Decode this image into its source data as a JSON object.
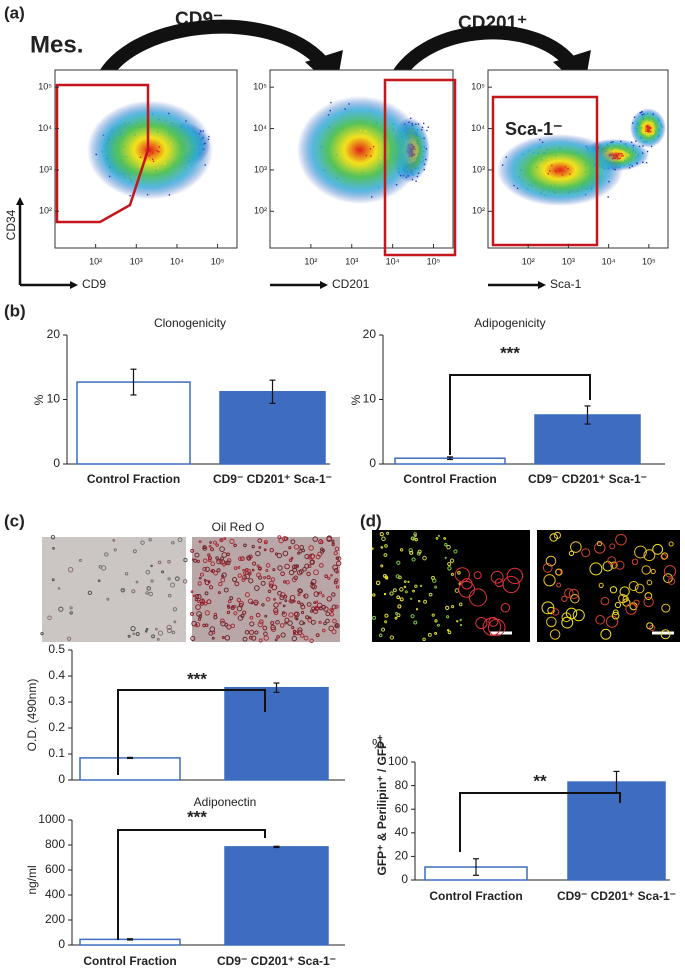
{
  "panels": [
    "(a)",
    "(b)",
    "(c)",
    "(d)"
  ],
  "flow": {
    "source": "Mes.",
    "steps": [
      "CD9⁻",
      "CD201⁺"
    ]
  },
  "chart_data": [
    {
      "type": "density",
      "x_label": "CD9",
      "y_label": "CD34",
      "log_scale": true,
      "xlim": [
        10,
        300000
      ],
      "ylim": [
        13,
        260000
      ],
      "xticks": [
        {
          "value": 100,
          "label": "10²"
        },
        {
          "value": 1000,
          "label": "10³"
        },
        {
          "value": 10000,
          "label": "10⁴"
        },
        {
          "value": 100000,
          "label": "10⁵"
        }
      ],
      "yticks": [
        {
          "value": 100,
          "label": "10²"
        },
        {
          "value": 1000,
          "label": "10³"
        },
        {
          "value": 10000,
          "label": "10⁴"
        },
        {
          "value": 100000,
          "label": "10⁵"
        }
      ]
    },
    {
      "type": "density",
      "x_label": "CD201",
      "log_scale": true,
      "xlim": [
        10,
        300000
      ],
      "ylim": [
        13,
        260000
      ],
      "xticks": [
        {
          "value": 100,
          "label": "10²"
        },
        {
          "value": 1000,
          "label": "10³"
        },
        {
          "value": 10000,
          "label": "10⁴"
        },
        {
          "value": 100000,
          "label": "10⁵"
        }
      ],
      "yticks": [
        {
          "value": 100,
          "label": "10²"
        },
        {
          "value": 1000,
          "label": "10³"
        },
        {
          "value": 10000,
          "label": "10⁴"
        },
        {
          "value": 100000,
          "label": "10⁵"
        }
      ]
    },
    {
      "type": "density",
      "x_label": "Sca-1",
      "gate_label": "Sca-1⁻",
      "log_scale": true,
      "xlim": [
        10,
        300000
      ],
      "ylim": [
        13,
        260000
      ],
      "xticks": [
        {
          "value": 100,
          "label": "10²"
        },
        {
          "value": 1000,
          "label": "10³"
        },
        {
          "value": 10000,
          "label": "10⁴"
        },
        {
          "value": 100000,
          "label": "10⁵"
        }
      ],
      "yticks": [
        {
          "value": 100,
          "label": "10²"
        },
        {
          "value": 1000,
          "label": "10³"
        },
        {
          "value": 10000,
          "label": "10⁴"
        },
        {
          "value": 100000,
          "label": "10⁵"
        }
      ]
    },
    {
      "type": "bar",
      "title": "Clonogenicity",
      "y_label": "%",
      "categories": [
        "Control Fraction",
        "CD9⁻ CD201⁺ Sca-1⁻"
      ],
      "values": [
        12.7,
        11.2
      ],
      "errors": [
        2,
        1.8
      ],
      "colors": [
        "#ffffff",
        "#3d6cc0"
      ],
      "edge_color": "#3d6cc0",
      "ylim": [
        0,
        20
      ],
      "yticks": [
        0,
        10,
        20
      ]
    },
    {
      "type": "bar",
      "title": "Adipogenicity",
      "y_label": "%",
      "annotation": "***",
      "categories": [
        "Control Fraction",
        "CD9⁻ CD201⁺ Sca-1⁻"
      ],
      "values": [
        0.9,
        7.6
      ],
      "errors": [
        0.2,
        1.4
      ],
      "colors": [
        "#ffffff",
        "#3d6cc0"
      ],
      "edge_color": "#3d6cc0",
      "ylim": [
        0,
        20
      ],
      "yticks": [
        0,
        10,
        20
      ]
    },
    {
      "type": "bar",
      "title": "Oil Red O",
      "y_label": "O.D. (490nm)",
      "annotation": "***",
      "values": [
        0.085,
        0.355
      ],
      "errors": [
        0.002,
        0.018
      ],
      "colors": [
        "#ffffff",
        "#3d6cc0"
      ],
      "edge_color": "#3d6cc0",
      "ylim": [
        0,
        0.5
      ],
      "yticks": [
        0,
        0.1,
        0.2,
        0.3,
        0.4,
        0.5
      ]
    },
    {
      "type": "bar",
      "title": "Adiponectin",
      "y_label": "ng/ml",
      "annotation": "***",
      "categories": [
        "Control Fraction",
        "CD9⁻ CD201⁺ Sca-1⁻"
      ],
      "values": [
        45,
        785
      ],
      "errors": [
        5,
        5
      ],
      "colors": [
        "#ffffff",
        "#3d6cc0"
      ],
      "edge_color": "#3d6cc0",
      "ylim": [
        0,
        1000
      ],
      "yticks": [
        0,
        200,
        400,
        600,
        800,
        1000
      ]
    },
    {
      "type": "bar",
      "y_label": "GFP⁺ & Perilipin⁺ / GFP⁺",
      "unit": "%",
      "annotation": "**",
      "categories": [
        "Control Fraction",
        "CD9⁻ CD201⁺ Sca-1⁻"
      ],
      "values": [
        11,
        83
      ],
      "errors": [
        7,
        9
      ],
      "colors": [
        "#ffffff",
        "#3d6cc0"
      ],
      "edge_color": "#3d6cc0",
      "ylim": [
        0,
        100
      ],
      "yticks": [
        0,
        20,
        40,
        60,
        80,
        100
      ]
    }
  ]
}
